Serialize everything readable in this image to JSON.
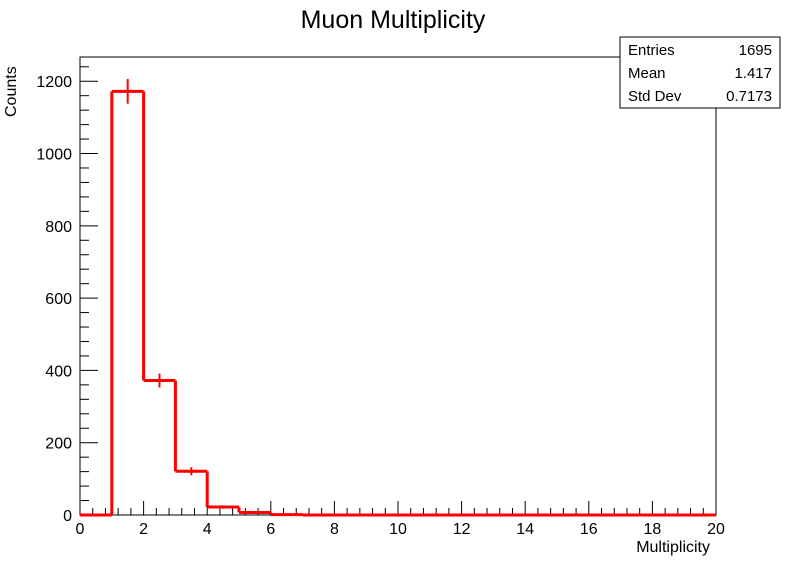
{
  "chart_data": {
    "type": "histogram",
    "title": "Muon Multiplicity",
    "xlabel": "Multiplicity",
    "ylabel": "Counts",
    "xlim": [
      0,
      20
    ],
    "ylim": [
      0,
      1267
    ],
    "x_ticks": [
      "0",
      "2",
      "4",
      "6",
      "8",
      "10",
      "12",
      "14",
      "16",
      "18",
      "20"
    ],
    "y_ticks": [
      "0",
      "200",
      "400",
      "600",
      "800",
      "1000",
      "1200"
    ],
    "bin_width": 1,
    "bin_edges": [
      0,
      1,
      2,
      3,
      4,
      5,
      6,
      7,
      8,
      9,
      10,
      11,
      12,
      13,
      14,
      15,
      16,
      17,
      18,
      19,
      20
    ],
    "values": [
      0,
      1172,
      372,
      121,
      22,
      7,
      1,
      0,
      0,
      0,
      0,
      0,
      0,
      0,
      0,
      0,
      0,
      0,
      0,
      0
    ],
    "line_color": "#ff0000",
    "legend": "none",
    "grid": false,
    "stats": {
      "rows": [
        {
          "label": "Entries",
          "value": "1695"
        },
        {
          "label": "Mean",
          "value": "1.417"
        },
        {
          "label": "Std Dev",
          "value": "0.7173"
        }
      ]
    }
  }
}
